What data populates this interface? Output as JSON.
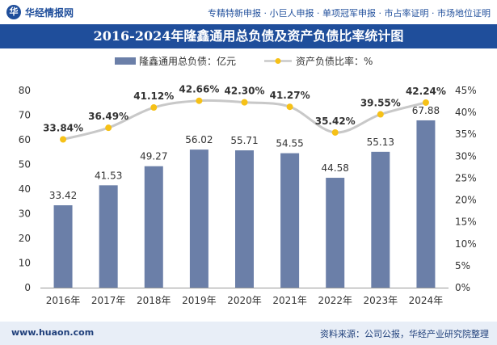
{
  "header": {
    "brand": "华经情报网",
    "tagline": "专精特新申报 · 小巨人申报 · 单项冠军申报 · 市占率证明 · 市场地位证明"
  },
  "footer": {
    "website": "www.huaon.com",
    "source": "资料来源：公司公报，华经产业研究院整理"
  },
  "colors": {
    "bar": "#6b7fa8",
    "line": "#c8c8c8",
    "marker": "#f6c117",
    "title_band": "#1f4e9b"
  },
  "chart_data": {
    "type": "bar",
    "title": "2016-2024年隆鑫通用总负债及资产负债比率统计图",
    "categories": [
      "2016年",
      "2017年",
      "2018年",
      "2019年",
      "2020年",
      "2021年",
      "2022年",
      "2023年",
      "2024年"
    ],
    "series": [
      {
        "name": "隆鑫通用总负债：亿元",
        "type": "bar",
        "axis": "left",
        "values": [
          33.42,
          41.53,
          49.27,
          56.02,
          55.71,
          54.55,
          44.58,
          55.13,
          67.88
        ],
        "labels": [
          "33.42",
          "41.53",
          "49.27",
          "56.02",
          "55.71",
          "54.55",
          "44.58",
          "55.13",
          "67.88"
        ]
      },
      {
        "name": "资产负债比率：%",
        "type": "line",
        "axis": "right",
        "values": [
          33.84,
          36.49,
          41.12,
          42.66,
          42.3,
          41.27,
          35.42,
          39.55,
          42.24
        ],
        "labels": [
          "33.84%",
          "36.49%",
          "41.12%",
          "42.66%",
          "42.30%",
          "41.27%",
          "35.42%",
          "39.55%",
          "42.24%"
        ]
      }
    ],
    "y_left": {
      "range": [
        0,
        80
      ],
      "ticks": [
        0,
        10,
        20,
        30,
        40,
        50,
        60,
        70,
        80
      ],
      "tick_labels": [
        "0",
        "10",
        "20",
        "30",
        "40",
        "50",
        "60",
        "70",
        "80"
      ]
    },
    "y_right": {
      "range": [
        0,
        45
      ],
      "ticks": [
        0,
        5,
        10,
        15,
        20,
        25,
        30,
        35,
        40,
        45
      ],
      "tick_labels": [
        "0%",
        "5%",
        "10%",
        "15%",
        "20%",
        "25%",
        "30%",
        "35%",
        "40%",
        "45%"
      ]
    },
    "legend_position": "top-center",
    "grid": false
  }
}
